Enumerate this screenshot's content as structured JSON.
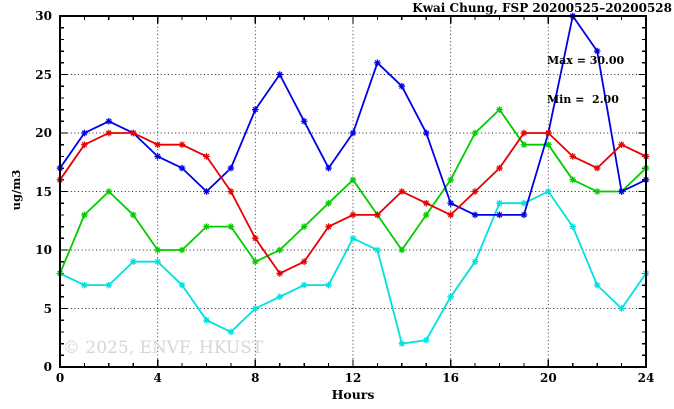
{
  "chart_data": {
    "type": "line",
    "title": "Kwai Chung, FSP 20200525–20200528",
    "xlabel": "Hours",
    "ylabel": "ug/m3",
    "xlim": [
      0,
      24
    ],
    "ylim": [
      0,
      30
    ],
    "xticks": [
      0,
      4,
      8,
      12,
      16,
      20,
      24
    ],
    "yticks": [
      0,
      5,
      10,
      15,
      20,
      25,
      30
    ],
    "x_minor_step": 1,
    "y_minor_step": 1,
    "grid": "dotted lines at major ticks, box border with inward ticks on all sides",
    "legend_position": "none",
    "annotation": {
      "max_label": "Max = 30.00",
      "min_label": "Min =  2.00"
    },
    "watermark": "© 2025, ENVF, HKUST",
    "x": [
      0,
      1,
      2,
      3,
      4,
      5,
      6,
      7,
      8,
      9,
      10,
      11,
      12,
      13,
      14,
      15,
      16,
      17,
      18,
      19,
      20,
      21,
      22,
      23,
      24
    ],
    "series": [
      {
        "name": "cyan-series",
        "color": "#00e0e0",
        "values": [
          8,
          7,
          7,
          9,
          9,
          7,
          4,
          3,
          5,
          6,
          7,
          7,
          11,
          10,
          2,
          2.3,
          6,
          9,
          14,
          14,
          15,
          12,
          7,
          5,
          8
        ]
      },
      {
        "name": "green-series",
        "color": "#00cc00",
        "values": [
          8,
          13,
          15,
          13,
          10,
          10,
          12,
          12,
          9,
          10,
          12,
          14,
          16,
          13,
          10,
          13,
          16,
          20,
          22,
          19,
          19,
          16,
          15,
          15,
          17
        ]
      },
      {
        "name": "blue-series",
        "color": "#0000e8",
        "values": [
          17,
          20,
          21,
          20,
          18,
          17,
          15,
          17,
          22,
          25,
          21,
          17,
          20,
          26,
          24,
          20,
          14,
          13,
          13,
          13,
          20,
          30,
          27,
          15,
          16
        ]
      },
      {
        "name": "red-series",
        "color": "#e60000",
        "values": [
          16,
          19,
          20,
          20,
          19,
          19,
          18,
          15,
          11,
          8,
          9,
          12,
          13,
          13,
          15,
          14,
          13,
          15,
          17,
          20,
          20,
          18,
          17,
          19,
          18
        ]
      }
    ]
  },
  "layout_colors": {
    "background": "#ffffff",
    "axis": "#000000",
    "text": "#000000",
    "watermark_text": "#d6d6d6"
  }
}
